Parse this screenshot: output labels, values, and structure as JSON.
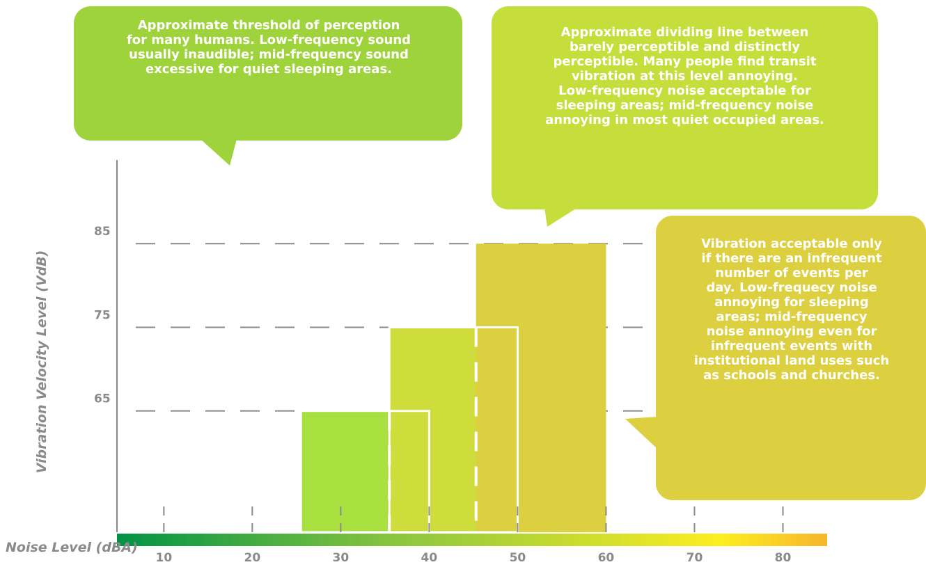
{
  "chart_data": {
    "type": "bar",
    "xlabel": "Noise Level (dBA)",
    "ylabel": "Vibration Velocity Level (VdB)",
    "x_ticks": [
      10,
      20,
      30,
      40,
      50,
      60,
      70,
      80
    ],
    "y_ticks": [
      65,
      75,
      85
    ],
    "xlim": [
      4.7,
      85
    ],
    "ylim": [
      50.5,
      95
    ],
    "grid": "dashed lines at y ticks",
    "bars": [
      {
        "x_start": 25.5,
        "x_end": 40,
        "value": 65,
        "divider_x": 35.5,
        "color": "#a8e040"
      },
      {
        "x_start": 35.5,
        "x_end": 50,
        "value": 75,
        "divider_x": 45.3,
        "color": "#cfdd3c"
      },
      {
        "x_start": 45.3,
        "x_end": 60,
        "value": 85,
        "color": "#dccf40"
      }
    ],
    "annotations": [
      "Approximate threshold of perception\nfor many humans. Low-frequency sound\nusually inaudible; mid-frequency sound\nexcessive for quiet sleeping  areas.",
      "Approximate dividing line between\nbarely  perceptible and distinctly\nperceptible. Many people find transit\nvibration at this level annoying.\nLow-frequency noise acceptable for\nsleeping areas; mid-frequency noise\nannoying in most quiet occupied areas.",
      "Vibration acceptable only\nif there are an infrequent\nnumber of events per\nday. Low-frequecy noise\nannoying for sleeping\nareas; mid-frequency\nnoise annoying even for\ninfrequent events with\ninstitutional land uses such\nas schools and churches."
    ],
    "annotation_colors": [
      "#9ed33c",
      "#c6de3c",
      "#dccf40"
    ],
    "colorbar": [
      "#009245",
      "#8cc63f",
      "#fcee21",
      "#f7b52c"
    ],
    "axis_color": "#8a8a8a"
  }
}
